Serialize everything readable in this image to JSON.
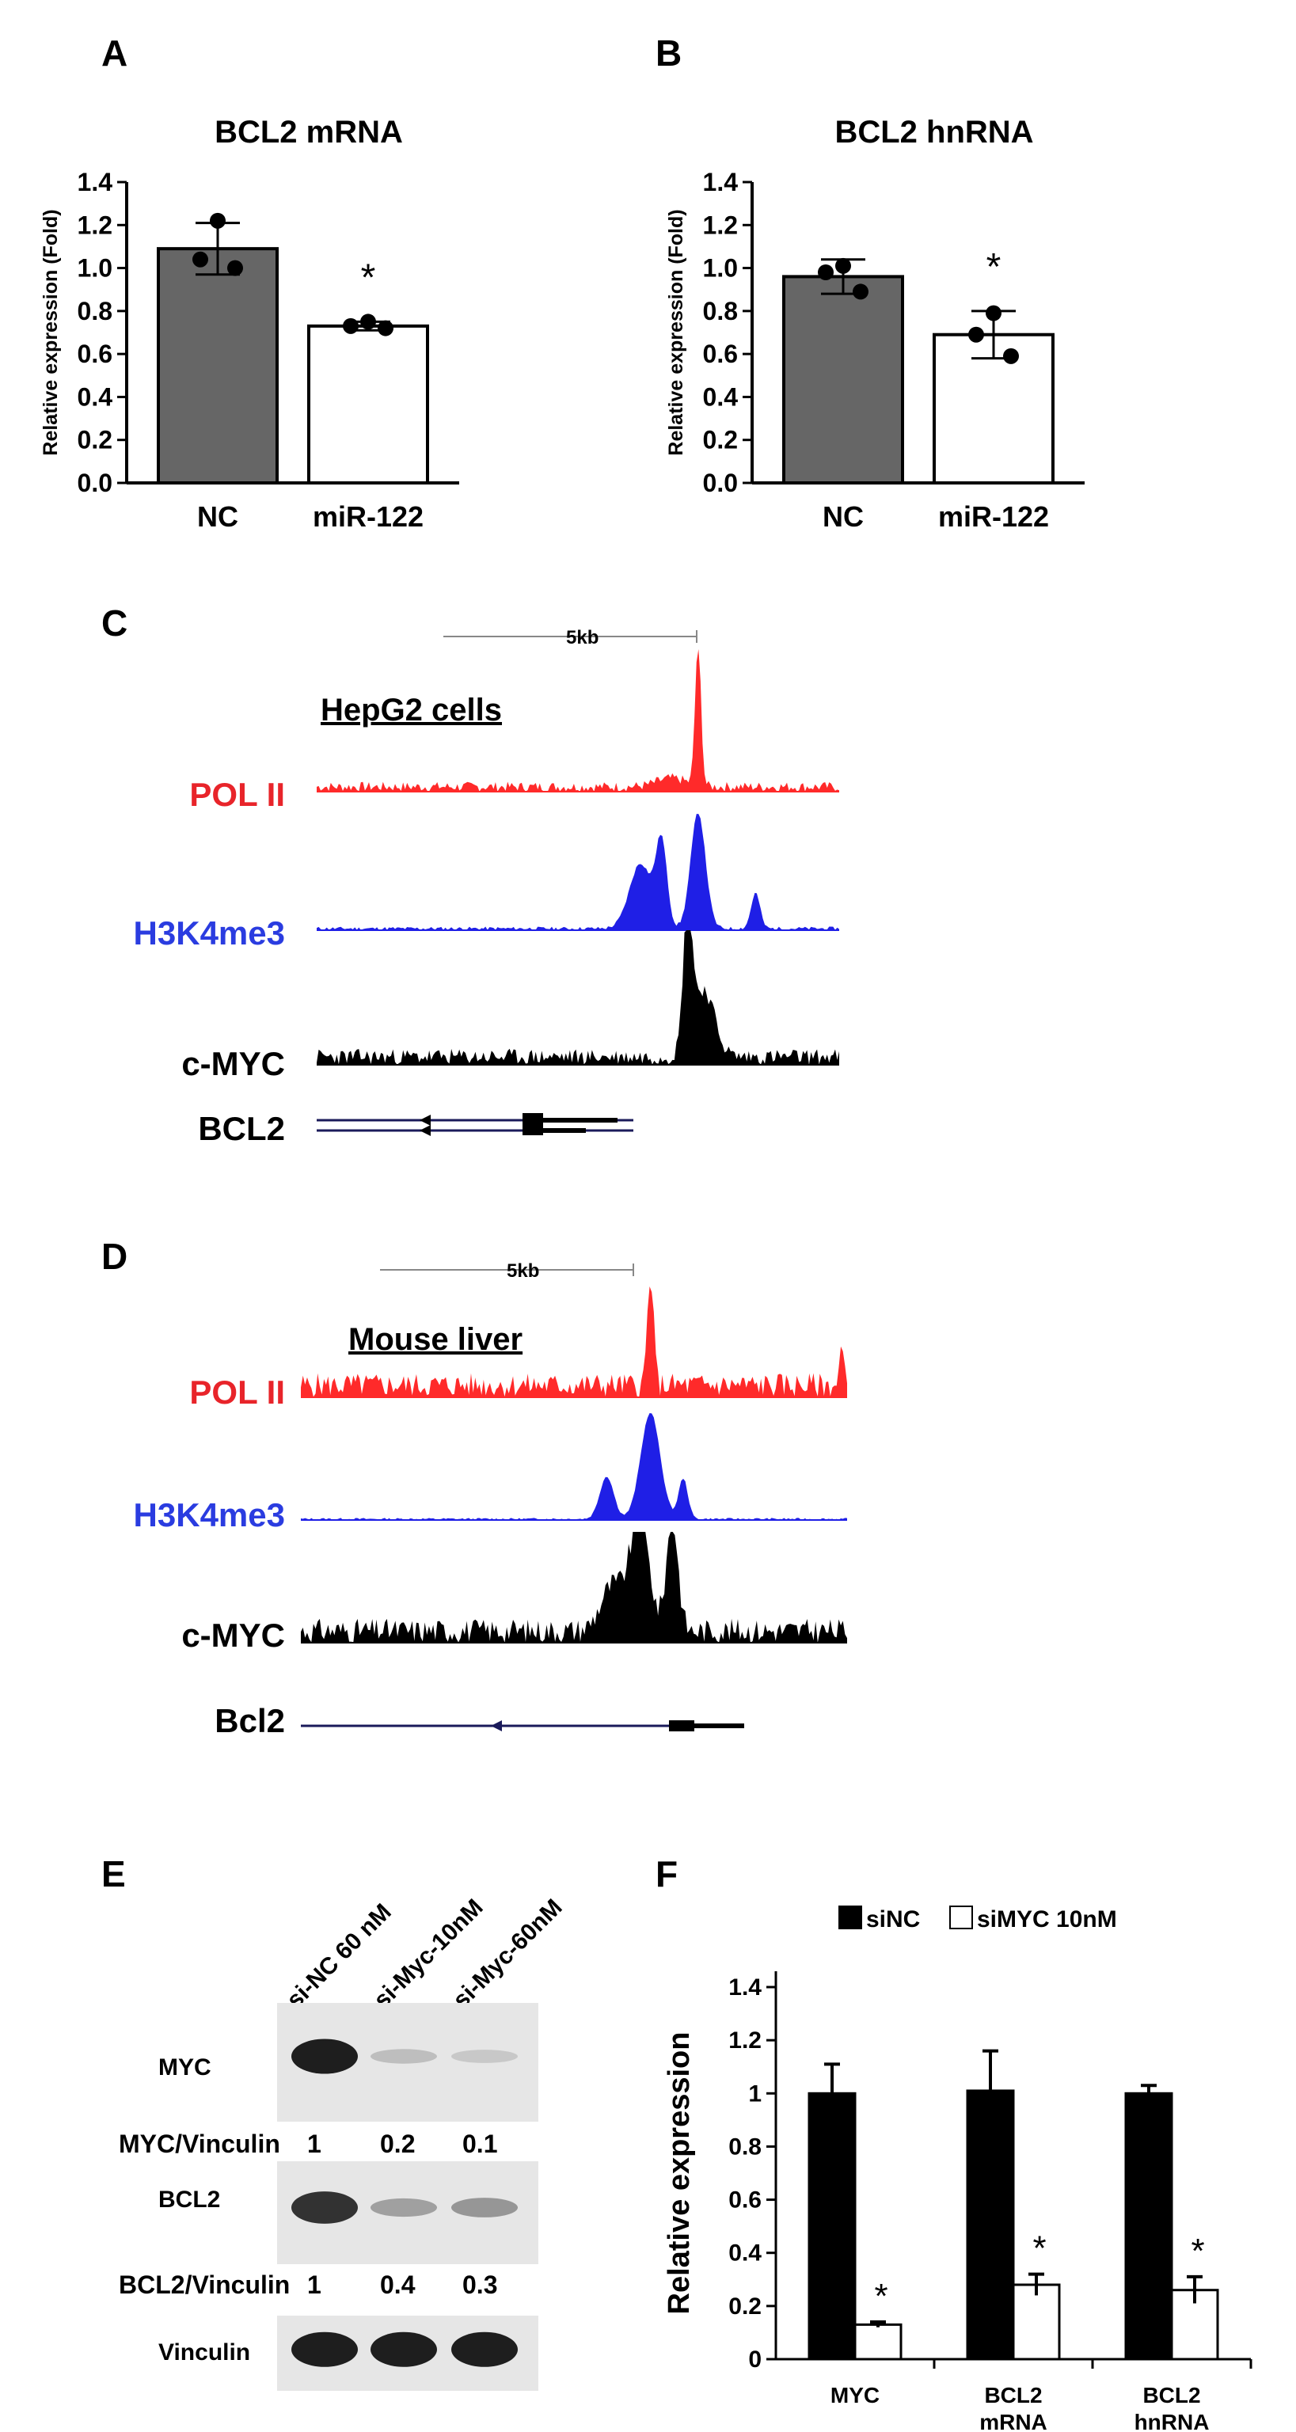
{
  "panels": {
    "a": {
      "letter": "A"
    },
    "b": {
      "letter": "B"
    },
    "c": {
      "letter": "C"
    },
    "d": {
      "letter": "D"
    },
    "e": {
      "letter": "E"
    },
    "f": {
      "letter": "F"
    }
  },
  "chart_data": [
    {
      "id": "A",
      "type": "bar",
      "title": "BCL2 mRNA",
      "ylabel": "Relative expression (Fold)",
      "xlabel": "",
      "categories": [
        "NC",
        "miR-122"
      ],
      "values": [
        1.09,
        0.73
      ],
      "errors": [
        0.12,
        0.02
      ],
      "points": [
        [
          1.22,
          1.04,
          1.0
        ],
        [
          0.75,
          0.73,
          0.72
        ]
      ],
      "significance": [
        "",
        "*"
      ],
      "bar_colors": [
        "#666666",
        "#ffffff"
      ],
      "ylim": [
        0,
        1.4
      ],
      "yticks": [
        "0.0",
        "0.2",
        "0.4",
        "0.6",
        "0.8",
        "1.0",
        "1.2",
        "1.4"
      ]
    },
    {
      "id": "B",
      "type": "bar",
      "title": "BCL2 hnRNA",
      "ylabel": "Relative expression (Fold)",
      "xlabel": "",
      "categories": [
        "NC",
        "miR-122"
      ],
      "values": [
        0.96,
        0.69
      ],
      "errors": [
        0.08,
        0.11
      ],
      "points": [
        [
          1.01,
          0.98,
          0.89
        ],
        [
          0.79,
          0.69,
          0.59
        ]
      ],
      "significance": [
        "",
        "*"
      ],
      "bar_colors": [
        "#666666",
        "#ffffff"
      ],
      "ylim": [
        0,
        1.4
      ],
      "yticks": [
        "0.0",
        "0.2",
        "0.4",
        "0.6",
        "0.8",
        "1.0",
        "1.2",
        "1.4"
      ]
    },
    {
      "id": "F",
      "type": "bar",
      "title": "",
      "ylabel": "Relative expression",
      "xlabel": "",
      "categories": [
        "MYC",
        "BCL2\nmRNA",
        "BCL2\nhnRNA"
      ],
      "series": [
        {
          "name": "siNC",
          "values": [
            1.0,
            1.01,
            1.0
          ],
          "errors": [
            0.11,
            0.15,
            0.03
          ],
          "color": "#000000"
        },
        {
          "name": "siMYC 10nM",
          "values": [
            0.13,
            0.28,
            0.26
          ],
          "errors": [
            0.01,
            0.04,
            0.05
          ],
          "color": "#ffffff"
        }
      ],
      "significance": [
        "*",
        "*",
        "*"
      ],
      "legend_position": "top",
      "ylim": [
        0,
        1.4
      ],
      "yticks": [
        "0",
        "0.2",
        "0.4",
        "0.6",
        "0.8",
        "1",
        "1.2",
        "1.4"
      ]
    }
  ],
  "tracks_c": {
    "scale_label": "5kb",
    "cell_label": "HepG2 cells",
    "tracks": [
      {
        "label": "POL II",
        "color": "#ff2a2a"
      },
      {
        "label": "H3K4me3",
        "color": "#1f1fe6"
      },
      {
        "label": "c-MYC",
        "color": "#000000"
      }
    ],
    "gene_label": "BCL2"
  },
  "tracks_d": {
    "scale_label": "5kb",
    "cell_label": "Mouse liver",
    "tracks": [
      {
        "label": "POL II",
        "color": "#ff2a2a"
      },
      {
        "label": "H3K4me3",
        "color": "#1f1fe6"
      },
      {
        "label": "c-MYC",
        "color": "#000000"
      }
    ],
    "gene_label": "Bcl2"
  },
  "blot_e": {
    "lanes": [
      "si-NC 60 nM",
      "si-Myc-10nM",
      "si-Myc-60nM"
    ],
    "rows": [
      {
        "label": "MYC",
        "intensity": [
          1.0,
          0.2,
          0.15
        ]
      },
      {
        "label": "BCL2",
        "intensity": [
          0.9,
          0.35,
          0.4
        ]
      },
      {
        "label": "Vinculin",
        "intensity": [
          1.0,
          1.0,
          1.0
        ]
      }
    ],
    "ratios": [
      {
        "label": "MYC/Vinculin",
        "values": [
          "1",
          "0.2",
          "0.1"
        ]
      },
      {
        "label": "BCL2/Vinculin",
        "values": [
          "1",
          "0.4",
          "0.3"
        ]
      }
    ]
  }
}
